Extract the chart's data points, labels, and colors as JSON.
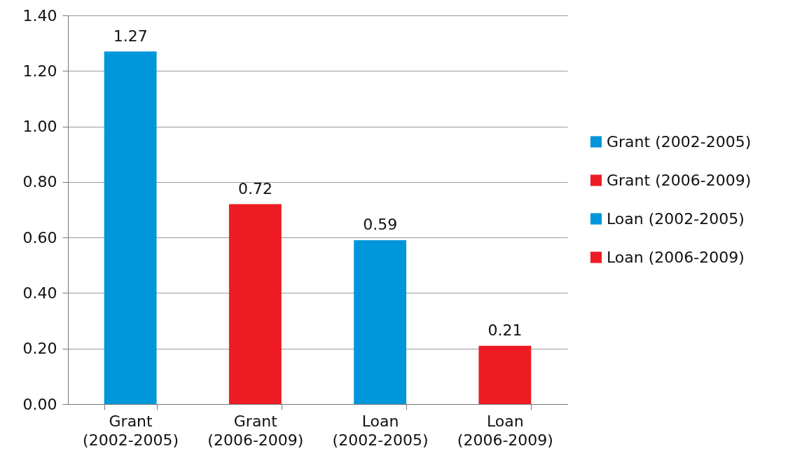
{
  "chart_data": {
    "type": "bar",
    "categories": [
      "Grant (2002-2005)",
      "Grant (2006-2009)",
      "Loan (2002-2005)",
      "Loan (2006-2009)"
    ],
    "series": [
      {
        "name": "Grant (2002-2005)",
        "color": "#0096da",
        "values": [
          1.27,
          null,
          null,
          null
        ]
      },
      {
        "name": "Grant (2006-2009)",
        "color": "#ed1c24",
        "values": [
          null,
          0.72,
          null,
          null
        ]
      },
      {
        "name": "Loan (2002-2005)",
        "color": "#0096da",
        "values": [
          null,
          null,
          0.59,
          null
        ]
      },
      {
        "name": "Loan (2006-2009)",
        "color": "#ed1c24",
        "values": [
          null,
          null,
          null,
          0.21
        ]
      }
    ],
    "ylim": [
      0,
      1.4
    ],
    "yticks": [
      {
        "value": 0,
        "label": "0.00"
      },
      {
        "value": 0.2,
        "label": "0.20"
      },
      {
        "value": 0.4,
        "label": "0.40"
      },
      {
        "value": 0.6,
        "label": "0.60"
      },
      {
        "value": 0.8,
        "label": "0.80"
      },
      {
        "value": 1,
        "label": "1.00"
      },
      {
        "value": 1.2,
        "label": "1.20"
      },
      {
        "value": 1.4,
        "label": "1.40"
      }
    ],
    "grid": "y",
    "legend": "right",
    "data_labels": true
  }
}
